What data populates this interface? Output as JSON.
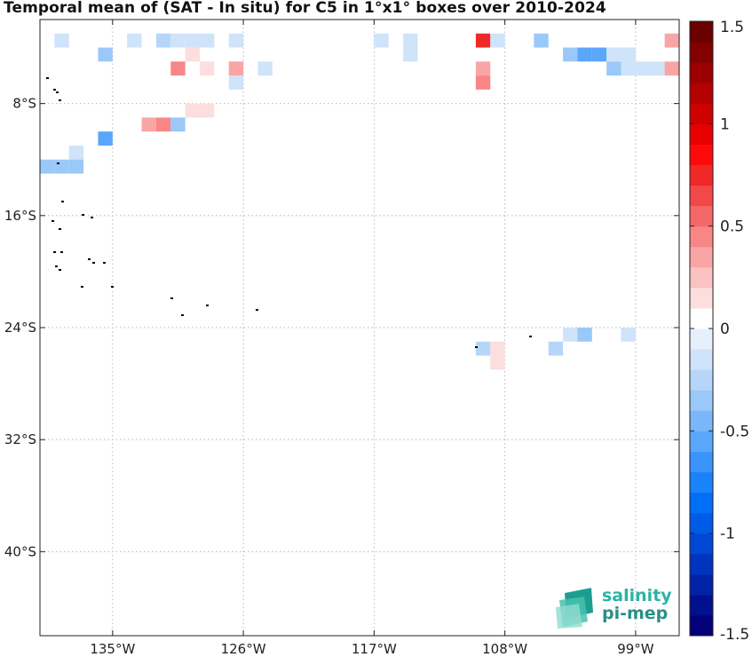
{
  "chart_data": {
    "type": "heatmap",
    "title": "Temporal mean of (SAT - In situ) for C5 in 1°x1° boxes over 2010-2024",
    "xlim": [
      -140,
      -96
    ],
    "ylim": [
      -46,
      -2
    ],
    "x_ticks": [
      -135,
      -126,
      -117,
      -108,
      -99
    ],
    "x_tick_labels": [
      "135°W",
      "126°W",
      "117°W",
      "108°W",
      "99°W"
    ],
    "y_ticks": [
      -8,
      -16,
      -24,
      -32,
      -40
    ],
    "y_tick_labels": [
      "8°S",
      "16°S",
      "24°S",
      "32°S",
      "40°S"
    ],
    "grid": true,
    "colorbar": {
      "range": [
        -1.5,
        1.5
      ],
      "levels": 30,
      "tick_values": [
        1.5,
        1,
        0.5,
        0,
        -0.5,
        -1,
        -1.5
      ],
      "tick_labels": [
        "1.5",
        "1",
        "0.5",
        "0",
        "-0.5",
        "-1",
        "-1.5"
      ],
      "position": "right"
    },
    "cells": [
      {
        "lon": -138.5,
        "lat": -3.5,
        "value": -0.1
      },
      {
        "lon": -133.5,
        "lat": -3.5,
        "value": -0.1
      },
      {
        "lon": -131.5,
        "lat": -3.5,
        "value": -0.25
      },
      {
        "lon": -130.5,
        "lat": -3.5,
        "value": -0.1
      },
      {
        "lon": -129.5,
        "lat": -3.5,
        "value": -0.1
      },
      {
        "lon": -128.5,
        "lat": -3.5,
        "value": -0.1
      },
      {
        "lon": -126.5,
        "lat": -3.5,
        "value": -0.15
      },
      {
        "lon": -116.5,
        "lat": -3.5,
        "value": -0.1
      },
      {
        "lon": -114.5,
        "lat": -3.5,
        "value": -0.1
      },
      {
        "lon": -109.5,
        "lat": -3.5,
        "value": 0.75
      },
      {
        "lon": -108.5,
        "lat": -3.5,
        "value": -0.15
      },
      {
        "lon": -105.5,
        "lat": -3.5,
        "value": -0.35
      },
      {
        "lon": -96.5,
        "lat": -3.5,
        "value": 0.35
      },
      {
        "lon": -135.5,
        "lat": -4.5,
        "value": -0.3
      },
      {
        "lon": -129.5,
        "lat": -4.5,
        "value": 0.1
      },
      {
        "lon": -114.5,
        "lat": -4.5,
        "value": -0.1
      },
      {
        "lon": -103.5,
        "lat": -4.5,
        "value": -0.35
      },
      {
        "lon": -102.5,
        "lat": -4.5,
        "value": -0.55
      },
      {
        "lon": -101.5,
        "lat": -4.5,
        "value": -0.55
      },
      {
        "lon": -100.5,
        "lat": -4.5,
        "value": -0.15
      },
      {
        "lon": -99.5,
        "lat": -4.5,
        "value": -0.15
      },
      {
        "lon": -130.5,
        "lat": -5.5,
        "value": 0.4
      },
      {
        "lon": -128.5,
        "lat": -5.5,
        "value": 0.15
      },
      {
        "lon": -126.5,
        "lat": -5.5,
        "value": -0.1
      },
      {
        "lon": -124.5,
        "lat": -5.5,
        "value": -0.1
      },
      {
        "lon": -126.5,
        "lat": -5.5,
        "value": 0.35
      },
      {
        "lon": -109.5,
        "lat": -5.5,
        "value": 0.3
      },
      {
        "lon": -100.5,
        "lat": -5.5,
        "value": -0.3
      },
      {
        "lon": -99.5,
        "lat": -5.5,
        "value": -0.15
      },
      {
        "lon": -98.5,
        "lat": -5.5,
        "value": -0.1
      },
      {
        "lon": -97.5,
        "lat": -5.5,
        "value": -0.1
      },
      {
        "lon": -96.5,
        "lat": -5.5,
        "value": 0.35
      },
      {
        "lon": -126.5,
        "lat": -6.5,
        "value": -0.1
      },
      {
        "lon": -109.5,
        "lat": -6.5,
        "value": 0.4
      },
      {
        "lon": -129.5,
        "lat": -8.5,
        "value": 0.15
      },
      {
        "lon": -128.5,
        "lat": -8.5,
        "value": 0.15
      },
      {
        "lon": -132.5,
        "lat": -9.5,
        "value": 0.3
      },
      {
        "lon": -131.5,
        "lat": -9.5,
        "value": 0.4
      },
      {
        "lon": -130.5,
        "lat": -9.5,
        "value": -0.3
      },
      {
        "lon": -135.5,
        "lat": -10.5,
        "value": -0.55
      },
      {
        "lon": -137.5,
        "lat": -11.5,
        "value": -0.1
      },
      {
        "lon": -139.5,
        "lat": -12.5,
        "value": -0.3
      },
      {
        "lon": -138.5,
        "lat": -12.5,
        "value": -0.3
      },
      {
        "lon": -137.5,
        "lat": -12.5,
        "value": -0.3
      },
      {
        "lon": -103.5,
        "lat": -24.5,
        "value": -0.2
      },
      {
        "lon": -102.5,
        "lat": -24.5,
        "value": -0.3
      },
      {
        "lon": -99.5,
        "lat": -24.5,
        "value": -0.1
      },
      {
        "lon": -109.5,
        "lat": -25.5,
        "value": -0.25
      },
      {
        "lon": -108.5,
        "lat": -25.5,
        "value": 0.1
      },
      {
        "lon": -104.5,
        "lat": -25.5,
        "value": -0.25
      },
      {
        "lon": -108.5,
        "lat": -26.5,
        "value": 0.15
      }
    ],
    "colorscale": [
      "#04007a",
      "#00108f",
      "#0022a6",
      "#0034be",
      "#0047d4",
      "#005ae8",
      "#006ef7",
      "#1a82fb",
      "#3a94fb",
      "#5aa6fa",
      "#7ab7f9",
      "#9ac8f8",
      "#b6d6f9",
      "#cfe3fa",
      "#e6f0fc",
      "#ffffff",
      "#fcdede",
      "#fbc2c2",
      "#faa5a5",
      "#f88686",
      "#f56868",
      "#f24848",
      "#f02828",
      "#ff0a0a",
      "#e60000",
      "#cf0000",
      "#b50000",
      "#9c0000",
      "#830000",
      "#6a0000"
    ]
  },
  "logo": {
    "line1": "salinity",
    "line2": "pi-mep"
  }
}
